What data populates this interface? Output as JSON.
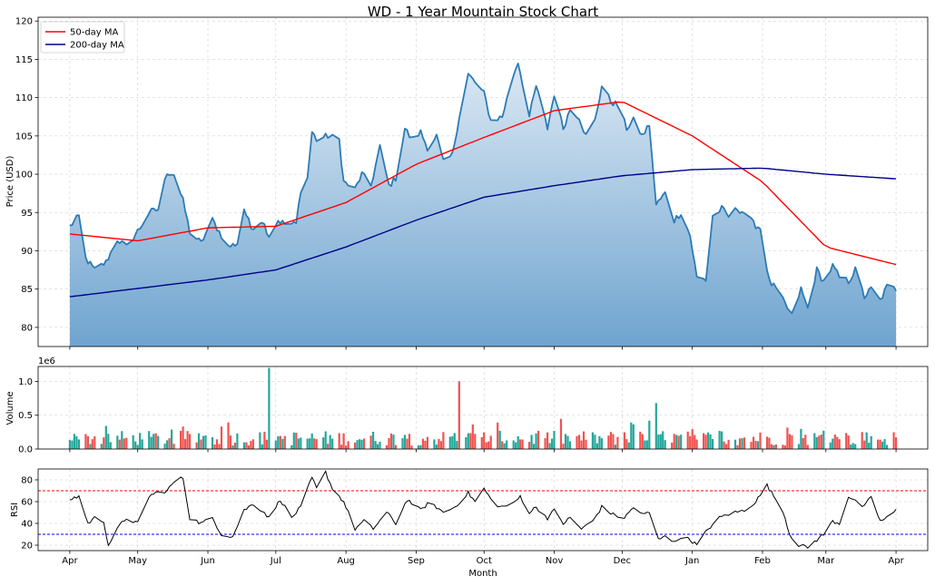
{
  "chart_data": [
    {
      "panel": "price",
      "type": "area",
      "title": "WD - 1 Year Mountain Stock Chart",
      "ylabel": "Price (USD)",
      "ylim": [
        77.5,
        120.5
      ],
      "yticks": [
        80,
        85,
        90,
        95,
        100,
        105,
        110,
        115,
        120
      ],
      "grid": true,
      "legend": {
        "placement": "top-left",
        "entries": [
          "50-day MA",
          "200-day MA"
        ]
      },
      "colors": {
        "price_line": "#2c7bb6",
        "fill_top": "#dbe8f4",
        "fill_bottom": "#6fa4cf",
        "ma50": "#ff0000",
        "ma200": "#00008b"
      },
      "price_keypoints": [
        [
          "2024-04-01",
          93.2
        ],
        [
          "2024-04-05",
          94.5
        ],
        [
          "2024-04-08",
          89.0
        ],
        [
          "2024-04-12",
          87.5
        ],
        [
          "2024-04-17",
          88.5
        ],
        [
          "2024-04-22",
          91.5
        ],
        [
          "2024-04-26",
          90.5
        ],
        [
          "2024-05-02",
          93.0
        ],
        [
          "2024-05-06",
          95.0
        ],
        [
          "2024-05-10",
          95.4
        ],
        [
          "2024-05-14",
          100.3
        ],
        [
          "2024-05-17",
          100.0
        ],
        [
          "2024-05-21",
          96.5
        ],
        [
          "2024-05-24",
          92.5
        ],
        [
          "2024-05-29",
          91.0
        ],
        [
          "2024-06-03",
          94.0
        ],
        [
          "2024-06-07",
          92.0
        ],
        [
          "2024-06-10",
          90.5
        ],
        [
          "2024-06-14",
          91.0
        ],
        [
          "2024-06-17",
          95.5
        ],
        [
          "2024-06-20",
          93.0
        ],
        [
          "2024-06-25",
          94.0
        ],
        [
          "2024-06-28",
          92.0
        ],
        [
          "2024-07-02",
          94.0
        ],
        [
          "2024-07-05",
          93.5
        ],
        [
          "2024-07-10",
          93.5
        ],
        [
          "2024-07-12",
          98.0
        ],
        [
          "2024-07-15",
          99.5
        ],
        [
          "2024-07-17",
          105.5
        ],
        [
          "2024-07-19",
          104.5
        ],
        [
          "2024-07-24",
          105.0
        ],
        [
          "2024-07-29",
          104.5
        ],
        [
          "2024-07-31",
          99.0
        ],
        [
          "2024-08-05",
          98.0
        ],
        [
          "2024-08-08",
          100.0
        ],
        [
          "2024-08-12",
          98.5
        ],
        [
          "2024-08-16",
          103.5
        ],
        [
          "2024-08-20",
          98.5
        ],
        [
          "2024-08-23",
          99.5
        ],
        [
          "2024-08-27",
          106.0
        ],
        [
          "2024-08-30",
          104.5
        ],
        [
          "2024-09-03",
          105.5
        ],
        [
          "2024-09-06",
          103.5
        ],
        [
          "2024-09-10",
          105.0
        ],
        [
          "2024-09-13",
          101.5
        ],
        [
          "2024-09-17",
          102.5
        ],
        [
          "2024-09-20",
          107.5
        ],
        [
          "2024-09-24",
          113.0
        ],
        [
          "2024-09-27",
          112.0
        ],
        [
          "2024-10-01",
          110.5
        ],
        [
          "2024-10-04",
          107.0
        ],
        [
          "2024-10-09",
          107.5
        ],
        [
          "2024-10-14",
          113.0
        ],
        [
          "2024-10-16",
          114.7
        ],
        [
          "2024-10-18",
          112.0
        ],
        [
          "2024-10-21",
          107.5
        ],
        [
          "2024-10-24",
          111.5
        ],
        [
          "2024-10-29",
          106.0
        ],
        [
          "2024-11-01",
          110.5
        ],
        [
          "2024-11-05",
          106.0
        ],
        [
          "2024-11-08",
          108.5
        ],
        [
          "2024-11-12",
          107.5
        ],
        [
          "2024-11-15",
          105.0
        ],
        [
          "2024-11-19",
          107.0
        ],
        [
          "2024-11-22",
          111.5
        ],
        [
          "2024-11-26",
          109.5
        ],
        [
          "2024-11-29",
          109.0
        ],
        [
          "2024-12-03",
          106.0
        ],
        [
          "2024-12-06",
          107.0
        ],
        [
          "2024-12-10",
          105.0
        ],
        [
          "2024-12-13",
          106.5
        ],
        [
          "2024-12-16",
          96.0
        ],
        [
          "2024-12-20",
          97.5
        ],
        [
          "2024-12-24",
          94.0
        ],
        [
          "2024-12-27",
          95.0
        ],
        [
          "2024-12-31",
          92.0
        ],
        [
          "2025-01-03",
          86.5
        ],
        [
          "2025-01-07",
          86.2
        ],
        [
          "2025-01-10",
          94.5
        ],
        [
          "2025-01-14",
          95.5
        ],
        [
          "2025-01-17",
          94.5
        ],
        [
          "2025-01-21",
          95.5
        ],
        [
          "2025-01-24",
          95.0
        ],
        [
          "2025-01-28",
          93.5
        ],
        [
          "2025-01-31",
          93.0
        ],
        [
          "2025-02-04",
          86.0
        ],
        [
          "2025-02-07",
          85.0
        ],
        [
          "2025-02-11",
          83.0
        ],
        [
          "2025-02-14",
          81.5
        ],
        [
          "2025-02-18",
          85.0
        ],
        [
          "2025-02-21",
          82.5
        ],
        [
          "2025-02-25",
          87.5
        ],
        [
          "2025-02-28",
          86.0
        ],
        [
          "2025-03-04",
          88.0
        ],
        [
          "2025-03-07",
          86.5
        ],
        [
          "2025-03-11",
          86.0
        ],
        [
          "2025-03-14",
          87.5
        ],
        [
          "2025-03-18",
          84.0
        ],
        [
          "2025-03-21",
          85.0
        ],
        [
          "2025-03-25",
          83.5
        ],
        [
          "2025-03-28",
          85.3
        ],
        [
          "2025-04-01",
          85.0
        ]
      ],
      "ma50_keypoints": [
        [
          "2024-04-01",
          92.2
        ],
        [
          "2024-05-01",
          91.3
        ],
        [
          "2024-06-01",
          93.0
        ],
        [
          "2024-07-01",
          93.2
        ],
        [
          "2024-08-01",
          96.3
        ],
        [
          "2024-09-01",
          101.3
        ],
        [
          "2024-10-01",
          104.8
        ],
        [
          "2024-11-01",
          108.3
        ],
        [
          "2024-12-01",
          109.5
        ],
        [
          "2025-01-01",
          105.0
        ],
        [
          "2025-02-01",
          99.0
        ],
        [
          "2025-03-01",
          90.5
        ],
        [
          "2025-04-01",
          88.2
        ]
      ],
      "ma200_keypoints": [
        [
          "2024-04-01",
          84.0
        ],
        [
          "2024-06-01",
          86.2
        ],
        [
          "2024-07-01",
          87.5
        ],
        [
          "2024-08-01",
          90.5
        ],
        [
          "2024-09-01",
          94.0
        ],
        [
          "2024-10-01",
          97.0
        ],
        [
          "2024-11-01",
          98.5
        ],
        [
          "2024-12-01",
          99.8
        ],
        [
          "2025-01-01",
          100.6
        ],
        [
          "2025-02-01",
          100.8
        ],
        [
          "2025-03-01",
          100.0
        ],
        [
          "2025-04-01",
          99.4
        ]
      ]
    },
    {
      "panel": "volume",
      "type": "bar",
      "ylabel": "Volume",
      "offset_label": "1e6",
      "ylim": [
        0,
        1.22
      ],
      "yticks": [
        "0.0",
        "0.5",
        "1.0"
      ],
      "grid": true,
      "colors": {
        "up": "#26a69a",
        "down": "#ef5350"
      },
      "spikes": [
        {
          "date": "2024-06-28",
          "value": 1.2,
          "direction": "up"
        },
        {
          "date": "2024-09-20",
          "value": 1.0,
          "direction": "down"
        },
        {
          "date": "2024-12-16",
          "value": 0.68,
          "direction": "up"
        }
      ]
    },
    {
      "panel": "rsi",
      "type": "line",
      "ylabel": "RSI",
      "xlabel": "Month",
      "ylim": [
        15,
        90
      ],
      "yticks": [
        20,
        40,
        60,
        80
      ],
      "overbought": 70,
      "oversold": 30,
      "grid": true,
      "colors": {
        "line": "#000000",
        "overbought": "#ff0000",
        "oversold": "#0000ff"
      },
      "rsi_keypoints": [
        [
          "2024-04-01",
          62
        ],
        [
          "2024-04-05",
          65
        ],
        [
          "2024-04-09",
          40
        ],
        [
          "2024-04-12",
          45
        ],
        [
          "2024-04-16",
          42
        ],
        [
          "2024-04-18",
          20
        ],
        [
          "2024-04-23",
          38
        ],
        [
          "2024-04-26",
          45
        ],
        [
          "2024-05-01",
          40
        ],
        [
          "2024-05-06",
          65
        ],
        [
          "2024-05-09",
          68
        ],
        [
          "2024-05-14",
          70
        ],
        [
          "2024-05-17",
          78
        ],
        [
          "2024-05-21",
          82
        ],
        [
          "2024-05-24",
          45
        ],
        [
          "2024-05-29",
          40
        ],
        [
          "2024-06-03",
          45
        ],
        [
          "2024-06-07",
          30
        ],
        [
          "2024-06-12",
          28
        ],
        [
          "2024-06-17",
          52
        ],
        [
          "2024-06-21",
          58
        ],
        [
          "2024-06-26",
          50
        ],
        [
          "2024-06-28",
          45
        ],
        [
          "2024-07-03",
          62
        ],
        [
          "2024-07-08",
          45
        ],
        [
          "2024-07-12",
          55
        ],
        [
          "2024-07-17",
          82
        ],
        [
          "2024-07-19",
          72
        ],
        [
          "2024-07-23",
          87
        ],
        [
          "2024-07-26",
          72
        ],
        [
          "2024-07-31",
          60
        ],
        [
          "2024-08-05",
          35
        ],
        [
          "2024-08-09",
          42
        ],
        [
          "2024-08-13",
          35
        ],
        [
          "2024-08-19",
          50
        ],
        [
          "2024-08-23",
          40
        ],
        [
          "2024-08-28",
          62
        ],
        [
          "2024-09-03",
          52
        ],
        [
          "2024-09-06",
          58
        ],
        [
          "2024-09-10",
          55
        ],
        [
          "2024-09-13",
          50
        ],
        [
          "2024-09-18",
          55
        ],
        [
          "2024-09-24",
          68
        ],
        [
          "2024-09-27",
          60
        ],
        [
          "2024-10-01",
          72
        ],
        [
          "2024-10-04",
          62
        ],
        [
          "2024-10-08",
          55
        ],
        [
          "2024-10-14",
          58
        ],
        [
          "2024-10-17",
          65
        ],
        [
          "2024-10-21",
          50
        ],
        [
          "2024-10-24",
          55
        ],
        [
          "2024-10-29",
          45
        ],
        [
          "2024-11-01",
          52
        ],
        [
          "2024-11-05",
          40
        ],
        [
          "2024-11-08",
          45
        ],
        [
          "2024-11-13",
          35
        ],
        [
          "2024-11-18",
          42
        ],
        [
          "2024-11-22",
          55
        ],
        [
          "2024-11-27",
          48
        ],
        [
          "2024-12-02",
          45
        ],
        [
          "2024-12-06",
          55
        ],
        [
          "2024-12-10",
          48
        ],
        [
          "2024-12-13",
          50
        ],
        [
          "2024-12-17",
          25
        ],
        [
          "2024-12-20",
          30
        ],
        [
          "2024-12-24",
          22
        ],
        [
          "2024-12-27",
          28
        ],
        [
          "2024-12-31",
          25
        ],
        [
          "2025-01-03",
          20
        ],
        [
          "2025-01-08",
          35
        ],
        [
          "2025-01-13",
          45
        ],
        [
          "2025-01-16",
          48
        ],
        [
          "2025-01-20",
          50
        ],
        [
          "2025-01-24",
          52
        ],
        [
          "2025-01-29",
          60
        ],
        [
          "2025-02-03",
          75
        ],
        [
          "2025-02-06",
          65
        ],
        [
          "2025-02-10",
          52
        ],
        [
          "2025-02-13",
          30
        ],
        [
          "2025-02-17",
          20
        ],
        [
          "2025-02-21",
          18
        ],
        [
          "2025-02-25",
          25
        ],
        [
          "2025-02-28",
          30
        ],
        [
          "2025-03-04",
          42
        ],
        [
          "2025-03-07",
          40
        ],
        [
          "2025-03-11",
          65
        ],
        [
          "2025-03-14",
          60
        ],
        [
          "2025-03-18",
          55
        ],
        [
          "2025-03-21",
          65
        ],
        [
          "2025-03-25",
          42
        ],
        [
          "2025-03-28",
          45
        ],
        [
          "2025-04-01",
          52
        ]
      ]
    }
  ],
  "x_axis": {
    "tick_labels": [
      "Apr",
      "May",
      "Jun",
      "Jul",
      "Aug",
      "Sep",
      "Oct",
      "Nov",
      "Dec",
      "Jan",
      "Feb",
      "Mar",
      "Apr"
    ],
    "tick_dates": [
      "2024-04-01",
      "2024-05-01",
      "2024-06-01",
      "2024-07-01",
      "2024-08-01",
      "2024-09-01",
      "2024-10-01",
      "2024-11-01",
      "2024-12-01",
      "2025-01-01",
      "2025-02-01",
      "2025-03-01",
      "2025-04-01"
    ],
    "range": [
      "2024-03-18",
      "2025-04-15"
    ]
  }
}
